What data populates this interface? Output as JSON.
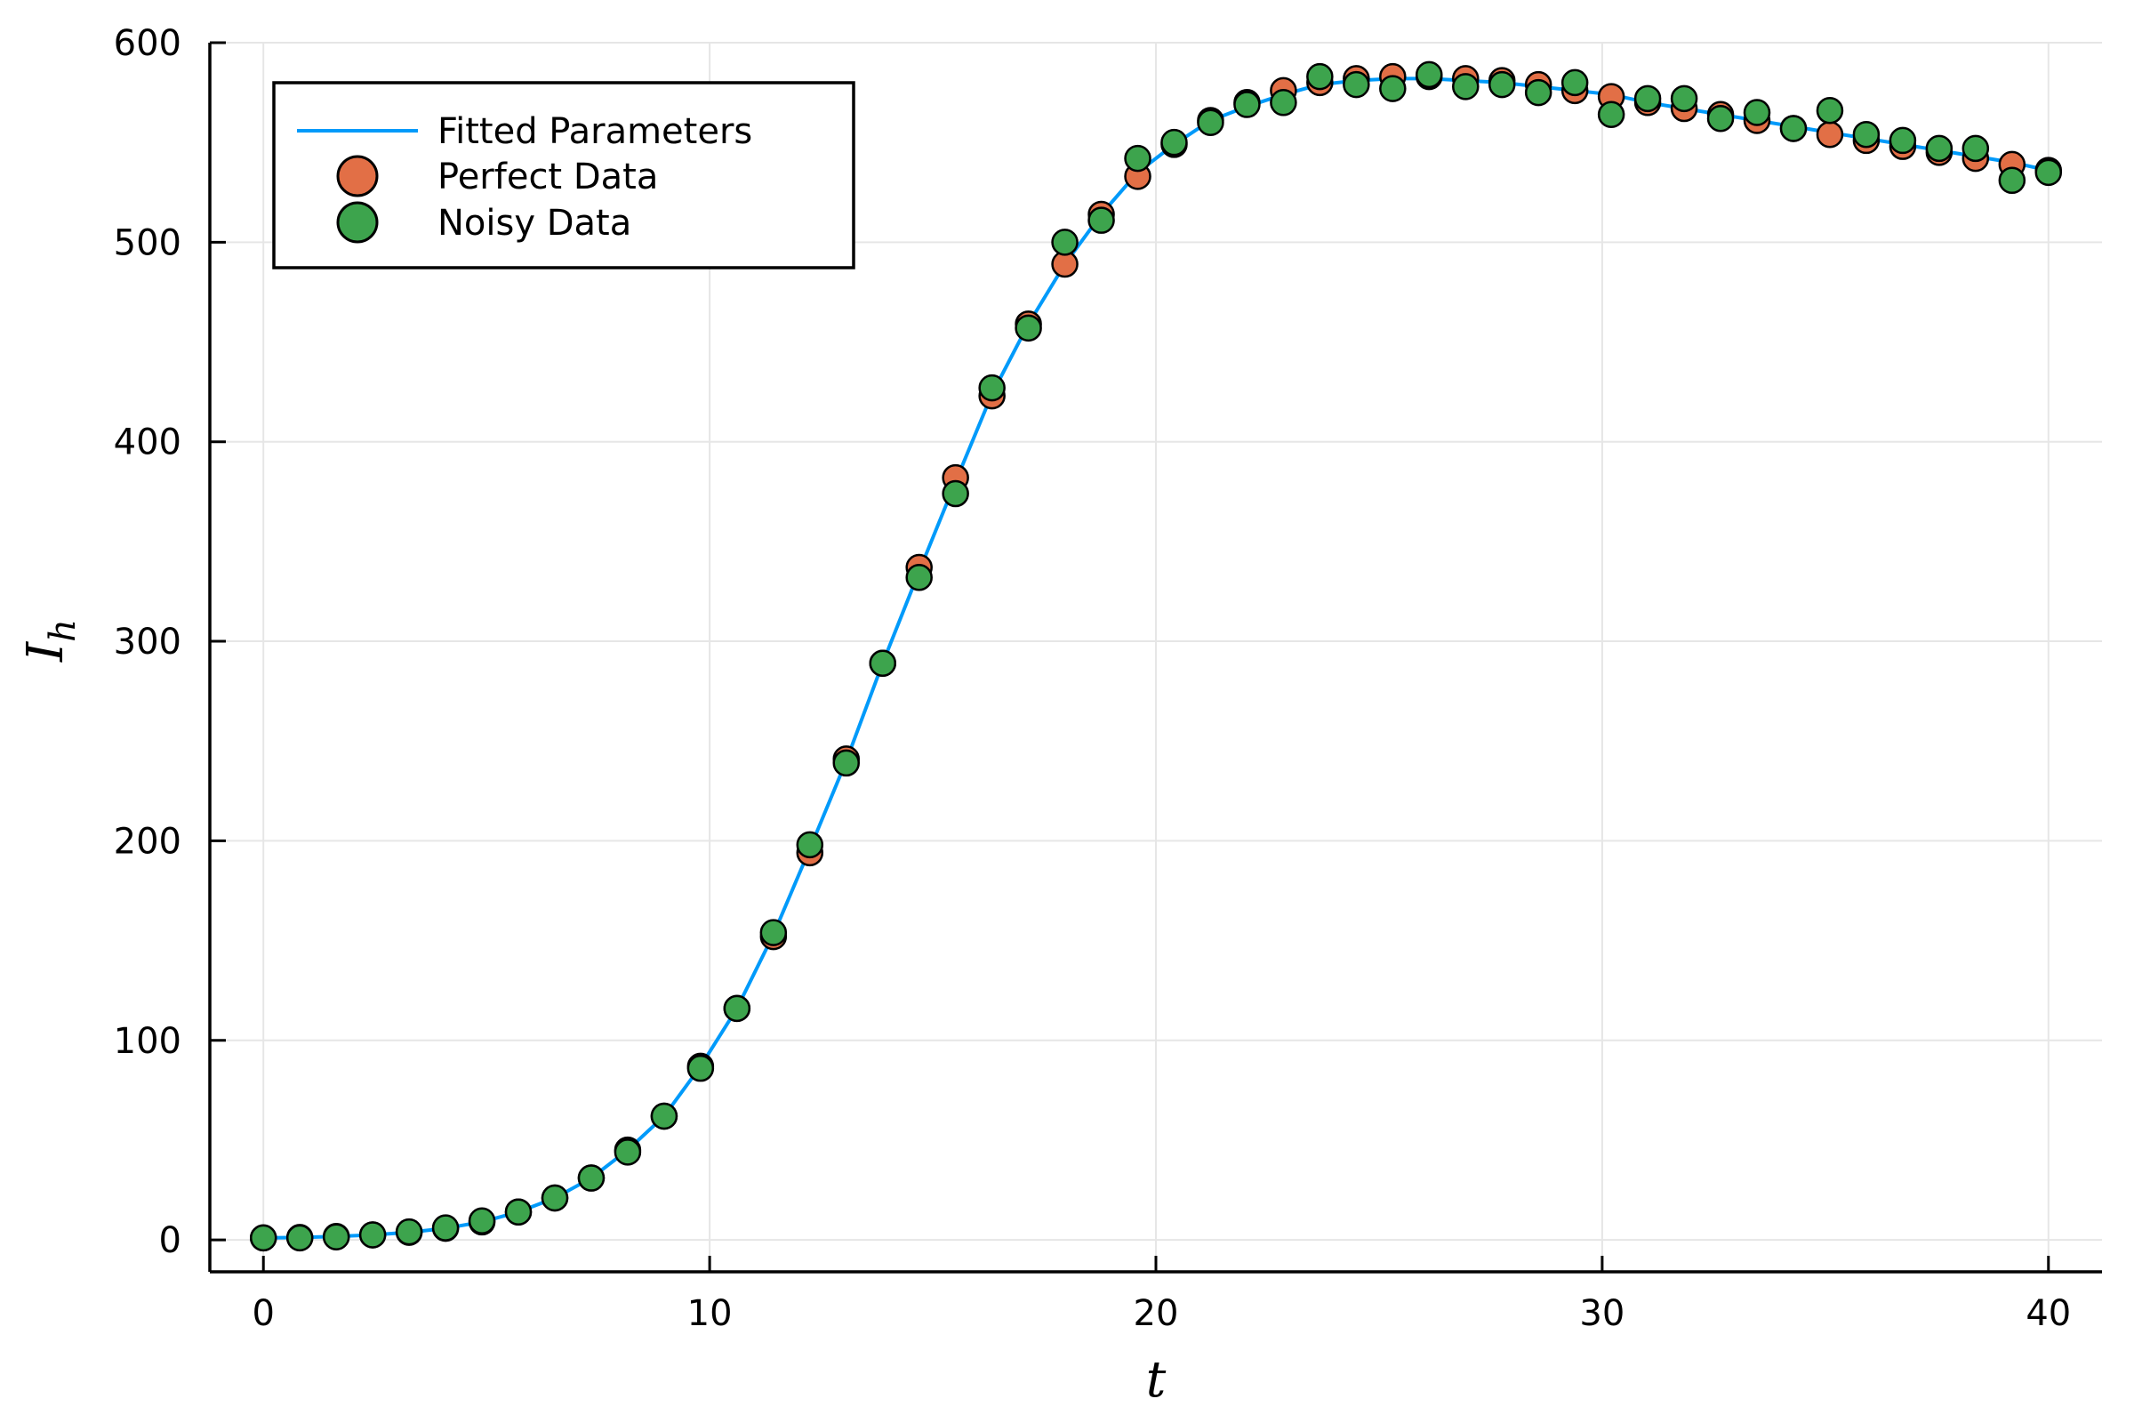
{
  "chart_data": {
    "type": "scatter",
    "xlabel": "t",
    "ylabel_main": "I",
    "ylabel_sub": "h",
    "xlim": [
      -1.2,
      41.2
    ],
    "ylim": [
      -16,
      600
    ],
    "xticks": [
      0,
      10,
      20,
      30,
      40
    ],
    "yticks": [
      0,
      100,
      200,
      300,
      400,
      500,
      600
    ],
    "grid": true,
    "legend_position": "top-left",
    "series": [
      {
        "name": "Fitted Parameters",
        "kind": "line",
        "color": "#009AFA",
        "x": [
          0,
          0.816,
          1.633,
          2.449,
          3.265,
          4.082,
          4.898,
          5.714,
          6.531,
          7.347,
          8.163,
          8.98,
          9.796,
          10.612,
          11.429,
          12.245,
          13.061,
          13.878,
          14.694,
          15.51,
          16.327,
          17.143,
          17.959,
          18.776,
          19.592,
          20.408,
          21.224,
          22.041,
          22.857,
          23.673,
          24.49,
          25.306,
          26.122,
          26.939,
          27.755,
          28.571,
          29.388,
          30.204,
          31.02,
          31.837,
          32.653,
          33.469,
          34.286,
          35.102,
          35.918,
          36.735,
          37.551,
          38.367,
          39.184,
          40.0
        ],
        "y": [
          1,
          1.2,
          1.7,
          2.5,
          3.8,
          5.8,
          9,
          14,
          21,
          31,
          45,
          62,
          87,
          116,
          153,
          196,
          240,
          289,
          335,
          380,
          424,
          459,
          489,
          514,
          535,
          549,
          561,
          568,
          574,
          579,
          581,
          582,
          582,
          581,
          580,
          578,
          576,
          574,
          570,
          567,
          564,
          561,
          558,
          555,
          552,
          549,
          546,
          543,
          540,
          536
        ]
      },
      {
        "name": "Perfect Data",
        "kind": "scatter",
        "color": "#E26F46",
        "x": [
          0,
          0.816,
          1.633,
          2.449,
          3.265,
          4.082,
          4.898,
          5.714,
          6.531,
          7.347,
          8.163,
          8.98,
          9.796,
          10.612,
          11.429,
          12.245,
          13.061,
          13.878,
          14.694,
          15.51,
          16.327,
          17.143,
          17.959,
          18.776,
          19.592,
          20.408,
          21.224,
          22.041,
          22.857,
          23.673,
          24.49,
          25.306,
          26.122,
          26.939,
          27.755,
          28.571,
          29.388,
          30.204,
          31.02,
          31.837,
          32.653,
          33.469,
          34.286,
          35.102,
          35.918,
          36.735,
          37.551,
          38.367,
          39.184,
          40.0
        ],
        "y": [
          1,
          1.2,
          1.7,
          2.5,
          3.8,
          5.8,
          9,
          14,
          21,
          31,
          45,
          62,
          87,
          116,
          152,
          194,
          241,
          289,
          337,
          382,
          423,
          459,
          489,
          514,
          533,
          549,
          561,
          570,
          576,
          580,
          582,
          583,
          583,
          582,
          581,
          579,
          576,
          573,
          570,
          567,
          564,
          561,
          557,
          554,
          551,
          548,
          545,
          542,
          539,
          536
        ]
      },
      {
        "name": "Noisy Data",
        "kind": "scatter",
        "color": "#3DA44D",
        "x": [
          0,
          0.816,
          1.633,
          2.449,
          3.265,
          4.082,
          4.898,
          5.714,
          6.531,
          7.347,
          8.163,
          8.98,
          9.796,
          10.612,
          11.429,
          12.245,
          13.061,
          13.878,
          14.694,
          15.51,
          16.327,
          17.143,
          17.959,
          18.776,
          19.592,
          20.408,
          21.224,
          22.041,
          22.857,
          23.673,
          24.49,
          25.306,
          26.122,
          26.939,
          27.755,
          28.571,
          29.388,
          30.204,
          31.02,
          31.837,
          32.653,
          33.469,
          34.286,
          35.102,
          35.918,
          36.735,
          37.551,
          38.367,
          39.184,
          40.0
        ],
        "y": [
          1,
          1,
          1.5,
          2.5,
          4,
          6,
          9.5,
          14,
          21,
          31,
          44,
          62,
          86,
          116,
          154,
          198,
          239,
          289,
          332,
          374,
          427,
          457,
          500,
          511,
          542,
          550,
          560,
          569,
          570,
          583,
          579,
          577,
          584,
          578,
          579,
          575,
          580,
          564,
          572,
          572,
          562,
          565,
          557,
          566,
          554,
          551,
          547,
          547,
          531,
          535
        ]
      }
    ]
  }
}
